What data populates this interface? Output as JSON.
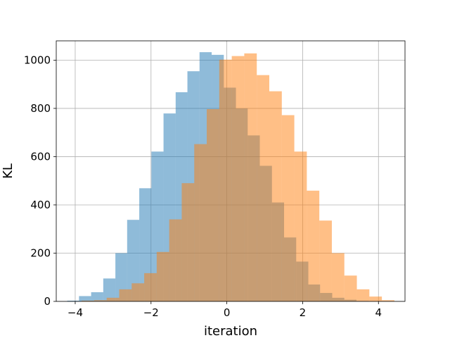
{
  "chart_data": {
    "type": "histogram",
    "title": "",
    "xlabel": "iteration",
    "ylabel": "KL",
    "xlim": [
      -4.5,
      4.7
    ],
    "ylim": [
      0,
      1080
    ],
    "xticks": [
      -4,
      -2,
      0,
      2,
      4
    ],
    "xtick_labels": [
      "−4",
      "−2",
      "0",
      "2",
      "4"
    ],
    "yticks": [
      0,
      200,
      400,
      600,
      800,
      1000
    ],
    "ytick_labels": [
      "0",
      "200",
      "400",
      "600",
      "800",
      "1000"
    ],
    "grid": true,
    "legend": false,
    "series": [
      {
        "color": "#1f77b4",
        "opacity": 0.5,
        "bin_edges": [
          -4.21,
          -3.9,
          -3.58,
          -3.26,
          -2.94,
          -2.63,
          -2.31,
          -1.99,
          -1.67,
          -1.35,
          -1.04,
          -0.72,
          -0.4,
          -0.08,
          0.24,
          0.55,
          0.87,
          1.19,
          1.51,
          1.83,
          2.15,
          2.46,
          2.78,
          3.1,
          3.42,
          3.74,
          4.05
        ],
        "counts": [
          3,
          22,
          38,
          95,
          200,
          338,
          469,
          621,
          779,
          867,
          954,
          1033,
          1022,
          886,
          800,
          688,
          562,
          410,
          265,
          165,
          70,
          35,
          15,
          7,
          2,
          1
        ]
      },
      {
        "color": "#ff7f0e",
        "opacity": 0.5,
        "bin_edges": [
          -3.83,
          -3.5,
          -3.17,
          -2.84,
          -2.51,
          -2.18,
          -1.85,
          -1.52,
          -1.19,
          -0.86,
          -0.53,
          -0.2,
          0.13,
          0.46,
          0.79,
          1.12,
          1.45,
          1.78,
          2.11,
          2.44,
          2.77,
          3.1,
          3.43,
          3.76,
          4.09,
          4.42
        ],
        "counts": [
          3,
          5,
          15,
          50,
          75,
          117,
          205,
          340,
          490,
          652,
          797,
          1002,
          1017,
          1028,
          938,
          871,
          772,
          621,
          459,
          335,
          200,
          107,
          50,
          20,
          5
        ]
      }
    ]
  }
}
